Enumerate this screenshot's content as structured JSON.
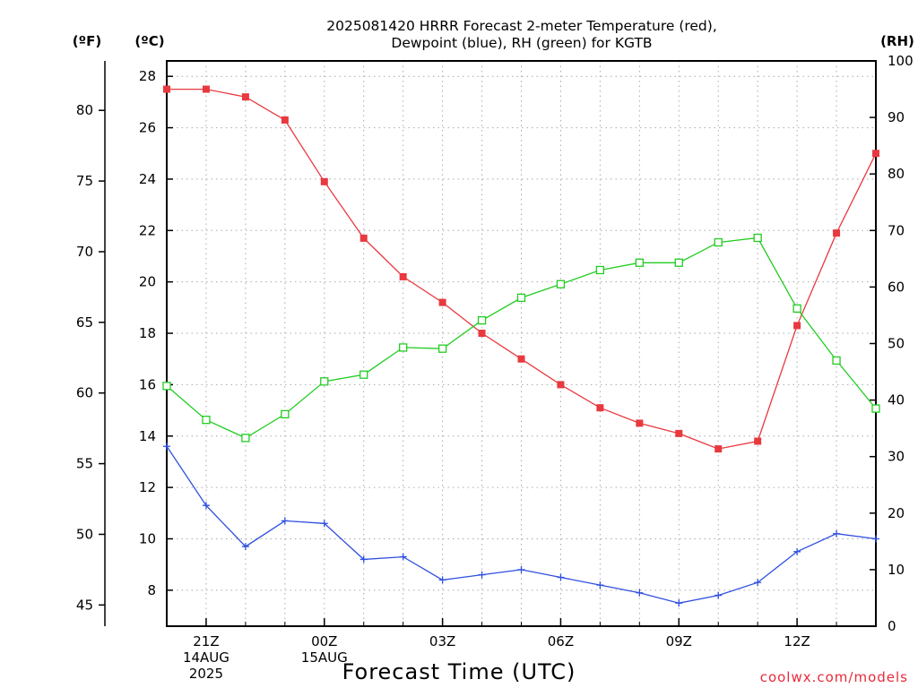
{
  "chart_data": {
    "type": "line",
    "title_lines": [
      "2025081420 HRRR Forecast 2-meter Temperature (red),",
      "Dewpoint (blue), RH (green) for KGTB"
    ],
    "xlabel": "Forecast Time (UTC)",
    "credit": "coolwx.com/models",
    "units": {
      "fahrenheit": "(ºF)",
      "celsius": "(ºC)",
      "rh": "(RH)"
    },
    "x_hours": [
      20,
      21,
      22,
      23,
      24,
      25,
      26,
      27,
      28,
      29,
      30,
      31,
      32,
      33,
      34,
      35,
      36,
      37,
      38
    ],
    "x_ticks": [
      {
        "hour": 21,
        "lines": [
          "21Z",
          "14AUG",
          "2025"
        ]
      },
      {
        "hour": 24,
        "lines": [
          "00Z",
          "15AUG"
        ]
      },
      {
        "hour": 27,
        "lines": [
          "03Z"
        ]
      },
      {
        "hour": 30,
        "lines": [
          "06Z"
        ]
      },
      {
        "hour": 33,
        "lines": [
          "09Z"
        ]
      },
      {
        "hour": 36,
        "lines": [
          "12Z"
        ]
      }
    ],
    "xlim": [
      20,
      38
    ],
    "celsius_axis": {
      "ylim": [
        6.6,
        28.6
      ],
      "ticks": [
        8,
        10,
        12,
        14,
        16,
        18,
        20,
        22,
        24,
        26,
        28
      ]
    },
    "fahrenheit_axis": {
      "ylim": [
        43.5,
        83.5
      ],
      "ticks": [
        45,
        50,
        55,
        60,
        65,
        70,
        75,
        80
      ]
    },
    "rh_axis": {
      "ylim": [
        0,
        100
      ],
      "ticks": [
        0,
        10,
        20,
        30,
        40,
        50,
        60,
        70,
        80,
        90,
        100
      ]
    },
    "grid": true,
    "series": [
      {
        "name": "Temperature",
        "axis": "celsius",
        "color": "#e8393f",
        "marker": "filled-square",
        "values": [
          27.5,
          27.5,
          27.2,
          26.3,
          23.9,
          21.7,
          20.2,
          19.2,
          18.0,
          17.0,
          16.0,
          15.1,
          14.5,
          14.1,
          13.5,
          13.8,
          18.3,
          21.9,
          25.0
        ]
      },
      {
        "name": "Dewpoint",
        "axis": "celsius",
        "color": "#2f4fe0",
        "marker": "plus",
        "values": [
          13.6,
          11.3,
          9.7,
          10.7,
          10.6,
          9.2,
          9.3,
          8.4,
          8.6,
          8.8,
          8.5,
          8.2,
          7.9,
          7.5,
          7.8,
          8.3,
          9.5,
          10.2,
          10.0
        ]
      },
      {
        "name": "RH",
        "axis": "rh",
        "color": "#22cc22",
        "marker": "open-square",
        "values": [
          42.5,
          36.5,
          33.3,
          37.5,
          43.3,
          44.5,
          49.3,
          49.1,
          54.1,
          58.1,
          60.5,
          63.0,
          64.3,
          64.3,
          67.9,
          68.7,
          56.2,
          47.0,
          38.5
        ]
      }
    ]
  }
}
